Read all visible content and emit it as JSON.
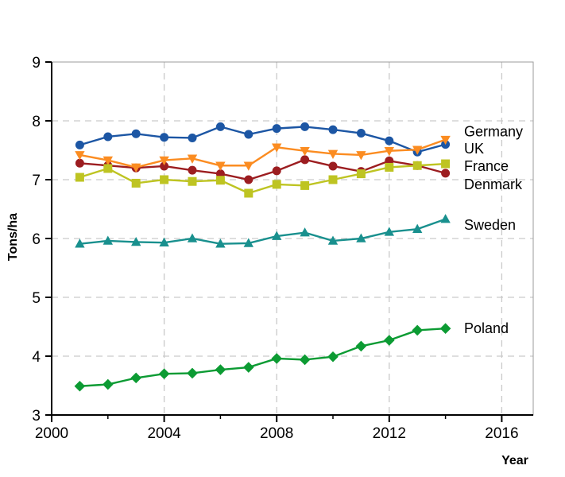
{
  "chart_data": {
    "type": "line",
    "title": "",
    "ylabel": "Tons/ha",
    "xlabel": "Year",
    "ylim": [
      3,
      9
    ],
    "xlim": [
      2000,
      2017.1
    ],
    "y_ticks": [
      3,
      4,
      5,
      6,
      7,
      8,
      9
    ],
    "x_ticks_labeled": [
      2000,
      2004,
      2008,
      2012,
      2016
    ],
    "x_ticks_minor": [
      2002,
      2006,
      2010,
      2014
    ],
    "grid": {
      "horizontal_at": [
        4,
        5,
        6,
        7,
        8
      ],
      "vertical_at": [
        2004,
        2008,
        2012,
        2016
      ],
      "style": "dashed"
    },
    "legend_position": "right-of-last-point",
    "x": [
      2001,
      2002,
      2003,
      2004,
      2005,
      2006,
      2007,
      2008,
      2009,
      2010,
      2011,
      2012,
      2013,
      2014
    ],
    "series": [
      {
        "name": "Germany",
        "marker": "circle",
        "color": "#1C56A4",
        "label_value": 7.82,
        "values": [
          7.59,
          7.73,
          7.78,
          7.72,
          7.71,
          7.9,
          7.77,
          7.87,
          7.9,
          7.85,
          7.79,
          7.66,
          7.47,
          7.6
        ]
      },
      {
        "name": "UK",
        "marker": "triangle-down",
        "color": "#FB8C21",
        "label_value": 7.53,
        "values": [
          7.42,
          7.33,
          7.21,
          7.33,
          7.36,
          7.24,
          7.24,
          7.55,
          7.49,
          7.44,
          7.42,
          7.49,
          7.51,
          7.68
        ]
      },
      {
        "name": "France",
        "marker": "circle",
        "color": "#9C1D20",
        "label_value": 7.23,
        "values": [
          7.28,
          7.24,
          7.2,
          7.23,
          7.16,
          7.1,
          7.0,
          7.15,
          7.34,
          7.23,
          7.14,
          7.32,
          7.24,
          7.11
        ]
      },
      {
        "name": "Denmark",
        "marker": "square",
        "color": "#BEC422",
        "label_value": 6.92,
        "values": [
          7.04,
          7.19,
          6.94,
          7.0,
          6.97,
          6.99,
          6.77,
          6.92,
          6.9,
          7.0,
          7.1,
          7.21,
          7.24,
          7.27
        ]
      },
      {
        "name": "Sweden",
        "marker": "triangle-up",
        "color": "#19908E",
        "label_value": 6.23,
        "values": [
          5.91,
          5.96,
          5.94,
          5.93,
          6.0,
          5.91,
          5.92,
          6.04,
          6.1,
          5.96,
          6.0,
          6.11,
          6.16,
          6.33
        ]
      },
      {
        "name": "Poland",
        "marker": "diamond",
        "color": "#0C9B33",
        "label_value": 4.47,
        "values": [
          3.49,
          3.52,
          3.63,
          3.7,
          3.71,
          3.77,
          3.81,
          3.96,
          3.94,
          3.99,
          4.17,
          4.27,
          4.44,
          4.47
        ]
      }
    ],
    "colors": {
      "background": "#FFFFFF",
      "gridline": "#C9C9C9",
      "frame": "#9B9B9B",
      "axis": "#000000",
      "text": "#000000"
    }
  }
}
